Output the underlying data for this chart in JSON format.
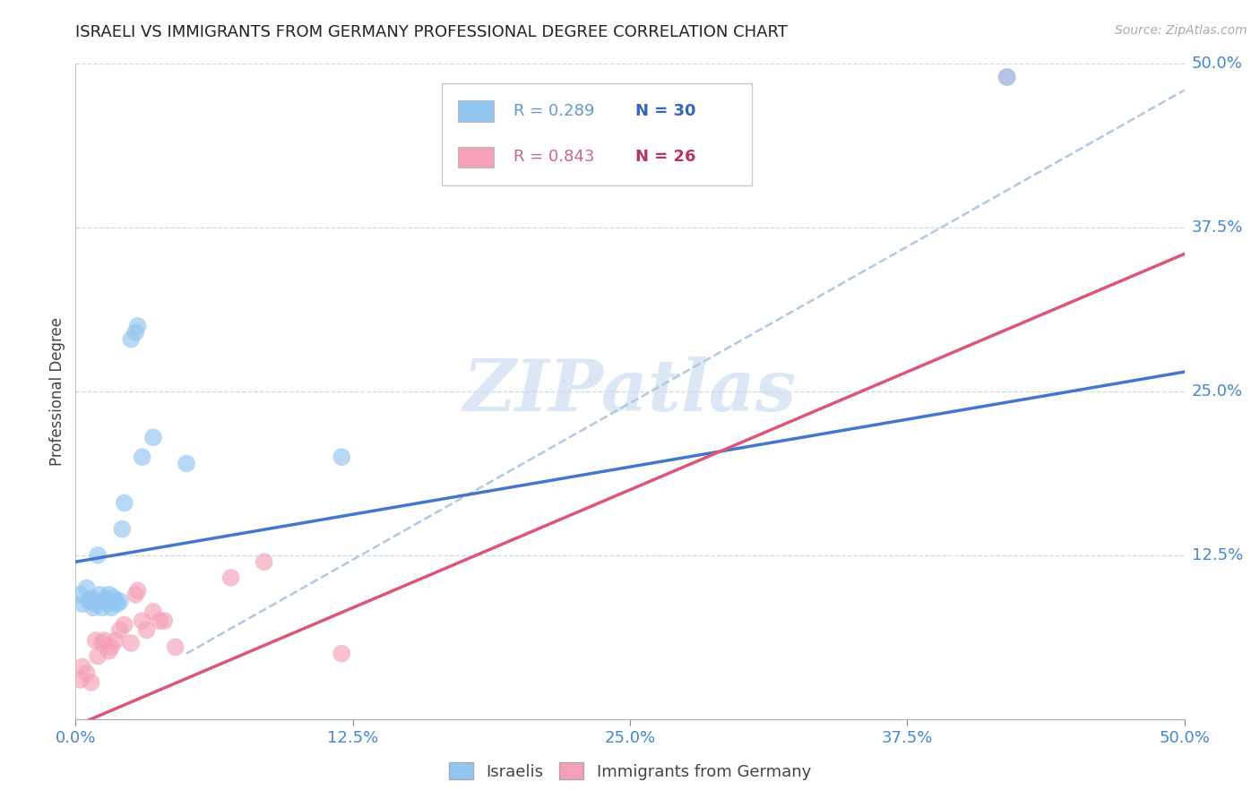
{
  "title": "ISRAELI VS IMMIGRANTS FROM GERMANY PROFESSIONAL DEGREE CORRELATION CHART",
  "source": "Source: ZipAtlas.com",
  "ylabel": "Professional Degree",
  "xlim": [
    0.0,
    0.5
  ],
  "ylim": [
    0.0,
    0.5
  ],
  "xtick_labels": [
    "0.0%",
    "12.5%",
    "25.0%",
    "37.5%",
    "50.0%"
  ],
  "xtick_vals": [
    0.0,
    0.125,
    0.25,
    0.375,
    0.5
  ],
  "ytick_labels_right": [
    "50.0%",
    "37.5%",
    "25.0%",
    "12.5%"
  ],
  "ytick_vals_right": [
    0.5,
    0.375,
    0.25,
    0.125
  ],
  "blue_R": 0.289,
  "blue_N": 30,
  "pink_R": 0.843,
  "pink_N": 26,
  "blue_color": "#92c5f0",
  "pink_color": "#f4a0b8",
  "blue_line_color": "#4477cc",
  "pink_line_color": "#dd5577",
  "dashed_line_color": "#b0c8e0",
  "watermark_color": "#cdddf0",
  "blue_scatter_x": [
    0.002,
    0.003,
    0.005,
    0.006,
    0.007,
    0.008,
    0.009,
    0.01,
    0.01,
    0.011,
    0.012,
    0.013,
    0.014,
    0.015,
    0.015,
    0.016,
    0.017,
    0.018,
    0.019,
    0.02,
    0.021,
    0.022,
    0.025,
    0.027,
    0.028,
    0.03,
    0.035,
    0.05,
    0.12,
    0.42
  ],
  "blue_scatter_y": [
    0.095,
    0.088,
    0.1,
    0.09,
    0.092,
    0.085,
    0.088,
    0.125,
    0.09,
    0.095,
    0.085,
    0.09,
    0.092,
    0.088,
    0.095,
    0.085,
    0.093,
    0.09,
    0.088,
    0.09,
    0.145,
    0.165,
    0.29,
    0.295,
    0.3,
    0.2,
    0.215,
    0.195,
    0.2,
    0.49
  ],
  "pink_scatter_x": [
    0.002,
    0.003,
    0.005,
    0.007,
    0.009,
    0.01,
    0.012,
    0.013,
    0.015,
    0.016,
    0.018,
    0.02,
    0.022,
    0.025,
    0.027,
    0.028,
    0.03,
    0.032,
    0.035,
    0.038,
    0.04,
    0.045,
    0.07,
    0.085,
    0.12,
    0.42
  ],
  "pink_scatter_y": [
    0.03,
    0.04,
    0.035,
    0.028,
    0.06,
    0.048,
    0.058,
    0.06,
    0.052,
    0.055,
    0.06,
    0.068,
    0.072,
    0.058,
    0.095,
    0.098,
    0.075,
    0.068,
    0.082,
    0.075,
    0.075,
    0.055,
    0.108,
    0.12,
    0.05,
    0.49
  ],
  "blue_line_x": [
    0.0,
    0.5
  ],
  "blue_line_y": [
    0.12,
    0.265
  ],
  "pink_line_x": [
    0.0,
    0.5
  ],
  "pink_line_y": [
    -0.005,
    0.355
  ],
  "dashed_line_x": [
    0.05,
    0.5
  ],
  "dashed_line_y": [
    0.05,
    0.48
  ]
}
